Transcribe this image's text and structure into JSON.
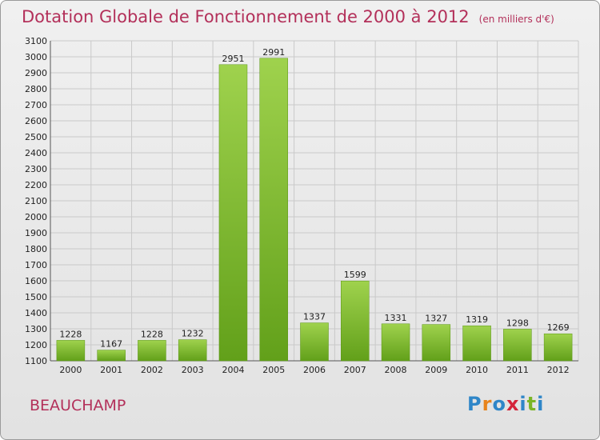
{
  "title": "Dotation Globale de Fonctionnement de 2000 à 2012",
  "subtitle": "(en milliers d'€)",
  "commune": "BEAUCHAMP",
  "logo": {
    "letters": [
      "P",
      "r",
      "o",
      "x",
      "i",
      "t",
      "i"
    ],
    "colors": [
      "#2f86c8",
      "#e8841c",
      "#2f86c8",
      "#d4243a",
      "#2f86c8",
      "#7ab526",
      "#2f86c8"
    ]
  },
  "chart_data": {
    "type": "bar",
    "categories": [
      "2000",
      "2001",
      "2002",
      "2003",
      "2004",
      "2005",
      "2006",
      "2007",
      "2008",
      "2009",
      "2010",
      "2011",
      "2012"
    ],
    "values": [
      1228,
      1167,
      1228,
      1232,
      2951,
      2991,
      1337,
      1599,
      1331,
      1327,
      1319,
      1298,
      1269
    ],
    "data_labels": [
      "1228",
      "1167",
      "1228",
      "1232",
      "2951",
      "2991",
      "1337",
      "1599",
      "1331",
      "1327",
      "1319",
      "1298",
      "1269"
    ],
    "ylim": [
      1100,
      3100
    ],
    "yticks": [
      1100,
      1200,
      1300,
      1400,
      1500,
      1600,
      1700,
      1800,
      1900,
      2000,
      2100,
      2200,
      2300,
      2400,
      2500,
      2600,
      2700,
      2800,
      2900,
      3000,
      3100
    ],
    "grid": true,
    "bar_color_light": "#9fd24d",
    "bar_color_dark": "#62a01a",
    "title": "Dotation Globale de Fonctionnement de 2000 à 2012",
    "xlabel": "",
    "ylabel": ""
  }
}
